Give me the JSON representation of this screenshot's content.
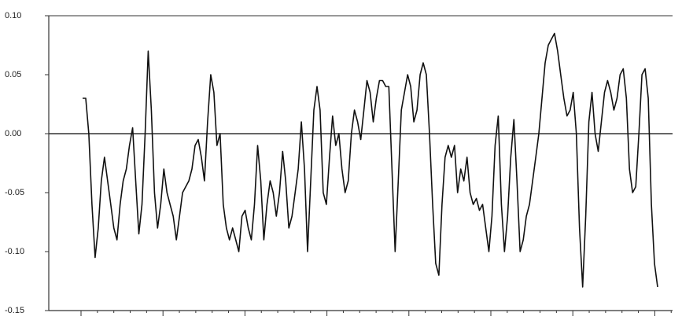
{
  "chart_data": {
    "type": "line",
    "color": "#111111",
    "zero_line": true,
    "ylim": [
      -0.15,
      0.1
    ],
    "yticks": [
      {
        "value": 0.1,
        "label": "0.10"
      },
      0.05,
      {
        "value": 0,
        "label": "0.00"
      },
      -0.05,
      {
        "value": -0.1,
        "label": "-0.10"
      },
      -0.15
    ],
    "values": [
      0.03,
      0.03,
      0.0,
      -0.06,
      -0.105,
      -0.08,
      -0.04,
      -0.02,
      -0.04,
      -0.06,
      -0.08,
      -0.09,
      -0.06,
      -0.04,
      -0.03,
      -0.01,
      0.005,
      -0.04,
      -0.085,
      -0.06,
      0.0,
      0.07,
      0.02,
      -0.05,
      -0.08,
      -0.06,
      -0.03,
      -0.05,
      -0.06,
      -0.07,
      -0.09,
      -0.07,
      -0.05,
      -0.045,
      -0.04,
      -0.03,
      -0.01,
      -0.005,
      -0.02,
      -0.04,
      0.01,
      0.05,
      0.035,
      -0.01,
      0.0,
      -0.06,
      -0.08,
      -0.09,
      -0.08,
      -0.09,
      -0.1,
      -0.07,
      -0.065,
      -0.08,
      -0.09,
      -0.06,
      -0.01,
      -0.04,
      -0.09,
      -0.06,
      -0.04,
      -0.05,
      -0.07,
      -0.05,
      -0.015,
      -0.04,
      -0.08,
      -0.07,
      -0.05,
      -0.03,
      0.01,
      -0.03,
      -0.1,
      -0.04,
      0.02,
      0.04,
      0.02,
      -0.05,
      -0.06,
      -0.02,
      0.015,
      -0.01,
      0.0,
      -0.03,
      -0.05,
      -0.04,
      0.0,
      0.02,
      0.01,
      -0.005,
      0.02,
      0.045,
      0.035,
      0.01,
      0.03,
      0.045,
      0.045,
      0.04,
      0.04,
      -0.03,
      -0.1,
      -0.04,
      0.02,
      0.035,
      0.05,
      0.04,
      0.01,
      0.02,
      0.05,
      0.06,
      0.05,
      0.0,
      -0.06,
      -0.11,
      -0.12,
      -0.06,
      -0.02,
      -0.01,
      -0.02,
      -0.01,
      -0.05,
      -0.03,
      -0.04,
      -0.02,
      -0.05,
      -0.06,
      -0.055,
      -0.065,
      -0.06,
      -0.08,
      -0.1,
      -0.07,
      -0.01,
      0.015,
      -0.06,
      -0.1,
      -0.07,
      -0.02,
      0.012,
      -0.04,
      -0.1,
      -0.09,
      -0.07,
      -0.06,
      -0.04,
      -0.02,
      0.0,
      0.03,
      0.06,
      0.075,
      0.08,
      0.085,
      0.07,
      0.05,
      0.03,
      0.015,
      0.02,
      0.035,
      0.0,
      -0.08,
      -0.13,
      -0.07,
      0.01,
      0.035,
      0.0,
      -0.015,
      0.01,
      0.035,
      0.045,
      0.035,
      0.02,
      0.03,
      0.05,
      0.055,
      0.03,
      -0.03,
      -0.05,
      -0.045,
      0.0,
      0.05,
      0.055,
      0.03,
      -0.06,
      -0.11,
      -0.13
    ]
  }
}
